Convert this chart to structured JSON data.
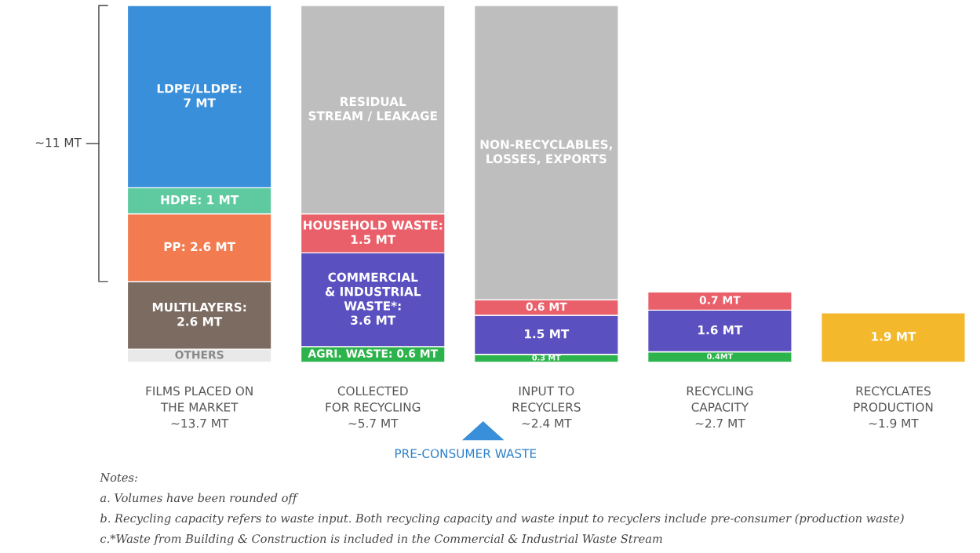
{
  "chart_data": {
    "type": "bar",
    "stacked": true,
    "tick_labels": "x",
    "grid": false,
    "categories": [
      "FILMS PLACED ON\nTHE MARKET\n~13.7 MT",
      "COLLECTED\nFOR RECYCLING\n~5.7 MT",
      "INPUT TO\nRECYCLERS\n~2.4 MT",
      "RECYCLING\nCAPACITY\n~2.7 MT",
      "RECYCLATES\nPRODUCTION\n~1.9 MT"
    ],
    "series": [
      {
        "color": "#e9e9ea",
        "values": [
          0.5,
          null,
          null,
          null,
          null
        ],
        "value_labels": [
          "OTHERS",
          null,
          null,
          null,
          null
        ]
      },
      {
        "color": "#7b6b60",
        "values": [
          2.6,
          null,
          null,
          null,
          null
        ],
        "value_labels": [
          "MULTILAYERS:\n2.6 MT",
          null,
          null,
          null,
          null
        ]
      },
      {
        "color": "#f27b50",
        "values": [
          2.6,
          null,
          null,
          null,
          null
        ],
        "value_labels": [
          "PP: 2.6 MT",
          null,
          null,
          null,
          null
        ]
      },
      {
        "color": "#5fcaa0",
        "values": [
          1,
          null,
          null,
          null,
          null
        ],
        "value_labels": [
          "HDPE: 1 MT",
          null,
          null,
          null,
          null
        ]
      },
      {
        "color": "#3a8fda",
        "values": [
          7,
          null,
          null,
          null,
          null
        ],
        "value_labels": [
          "LDPE/LLDPE:\n7 MT",
          null,
          null,
          null,
          null
        ]
      },
      {
        "color": "#2db34b",
        "values": [
          null,
          0.6,
          0.3,
          0.4,
          null
        ],
        "value_labels": [
          null,
          "AGRI. WASTE: 0.6 MT",
          "0.3 MT",
          "0.4MT",
          null
        ]
      },
      {
        "color": "#5b50c0",
        "values": [
          null,
          3.6,
          1.5,
          1.6,
          null
        ],
        "value_labels": [
          null,
          "COMMERCIAL\n& INDUSTRIAL\nWASTE*:\n3.6 MT",
          "1.5 MT",
          "1.6 MT",
          null
        ]
      },
      {
        "color": "#e9606b",
        "values": [
          null,
          1.5,
          0.6,
          0.7,
          null
        ],
        "value_labels": [
          null,
          "HOUSEHOLD WASTE:\n1.5 MT",
          "0.6 MT",
          "0.7 MT",
          null
        ]
      },
      {
        "color": "#bebebe",
        "values": [
          null,
          8.0,
          11.3,
          null,
          null
        ],
        "value_labels": [
          null,
          "RESIDUAL\nSTREAM / LEAKAGE",
          "NON-RECYCLABLES,\nLOSSES, EXPORTS",
          null,
          null
        ]
      },
      {
        "color": "#f3b82b",
        "values": [
          null,
          null,
          null,
          null,
          1.9
        ],
        "value_labels": [
          null,
          null,
          null,
          null,
          "1.9 MT"
        ]
      }
    ],
    "annotations": [
      "~11 MT",
      "PRE-CONSUMER WASTE",
      "Notes:",
      "a. Volumes have been rounded off",
      "b. Recycling capacity refers to waste input. Both recycling capacity and waste input to recyclers include pre-consumer (production waste)",
      "c.*Waste from Building & Construction is included in the Commercial & Industrial Waste Stream"
    ]
  }
}
